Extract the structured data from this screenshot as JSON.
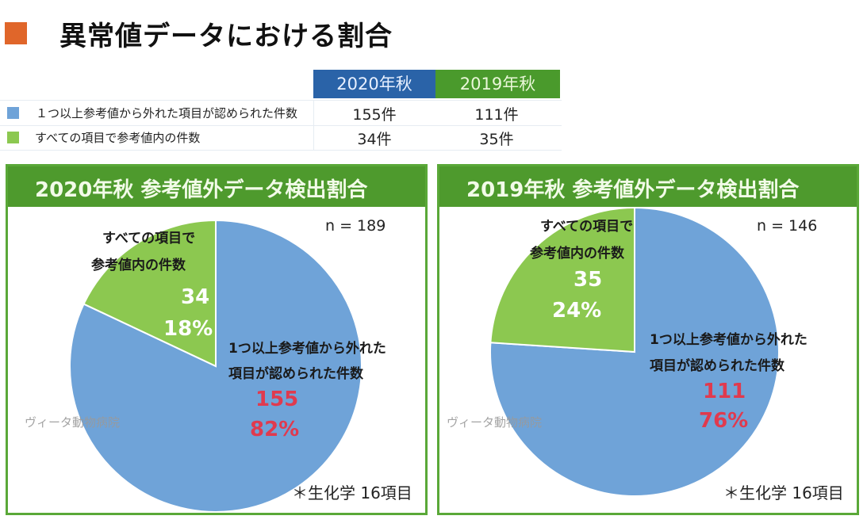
{
  "page": {
    "title": "異常値データにおける割合",
    "title_marker_color": "#e0662a"
  },
  "summary_table": {
    "columns": [
      "2020年秋",
      "2019年秋"
    ],
    "rows": [
      {
        "swatch_color": "#6fa3d8",
        "label": "１つ以上参考値から外れた項目が認められた件数",
        "values": [
          "155件",
          "111件"
        ]
      },
      {
        "swatch_color": "#8cc850",
        "label": "すべての項目で参考値内の件数",
        "values": [
          "34件",
          "35件"
        ]
      }
    ]
  },
  "colors": {
    "out_of_range": "#6fa3d8",
    "in_range": "#8cc850",
    "panel_header": "#4e9a2d",
    "highlight_red": "#e03a4e"
  },
  "chart_data": [
    {
      "type": "pie",
      "title": "2020年秋  参考値外データ検出割合",
      "n_label": "n = 189",
      "note": "＊生化学  16項目",
      "watermark": "ヴィータ動物病院",
      "slices": [
        {
          "name": "in_range",
          "label_lines": [
            "すべての項目で",
            "参考値内の件数"
          ],
          "value": 34,
          "value_label": "34",
          "percent": 18,
          "percent_label": "18%"
        },
        {
          "name": "out_of_range",
          "label_lines": [
            "1つ以上参考値から外れた",
            "項目が認められた件数"
          ],
          "value": 155,
          "value_label": "155",
          "percent": 82,
          "percent_label": "82%"
        }
      ]
    },
    {
      "type": "pie",
      "title": "2019年秋  参考値外データ検出割合",
      "n_label": "n = 146",
      "note": "＊生化学  16項目",
      "watermark": "ヴィータ動物病院",
      "slices": [
        {
          "name": "in_range",
          "label_lines": [
            "すべての項目で",
            "参考値内の件数"
          ],
          "value": 35,
          "value_label": "35",
          "percent": 24,
          "percent_label": "24%"
        },
        {
          "name": "out_of_range",
          "label_lines": [
            "1つ以上参考値から外れた",
            "項目が認められた件数"
          ],
          "value": 111,
          "value_label": "111",
          "percent": 76,
          "percent_label": "76%"
        }
      ]
    }
  ]
}
